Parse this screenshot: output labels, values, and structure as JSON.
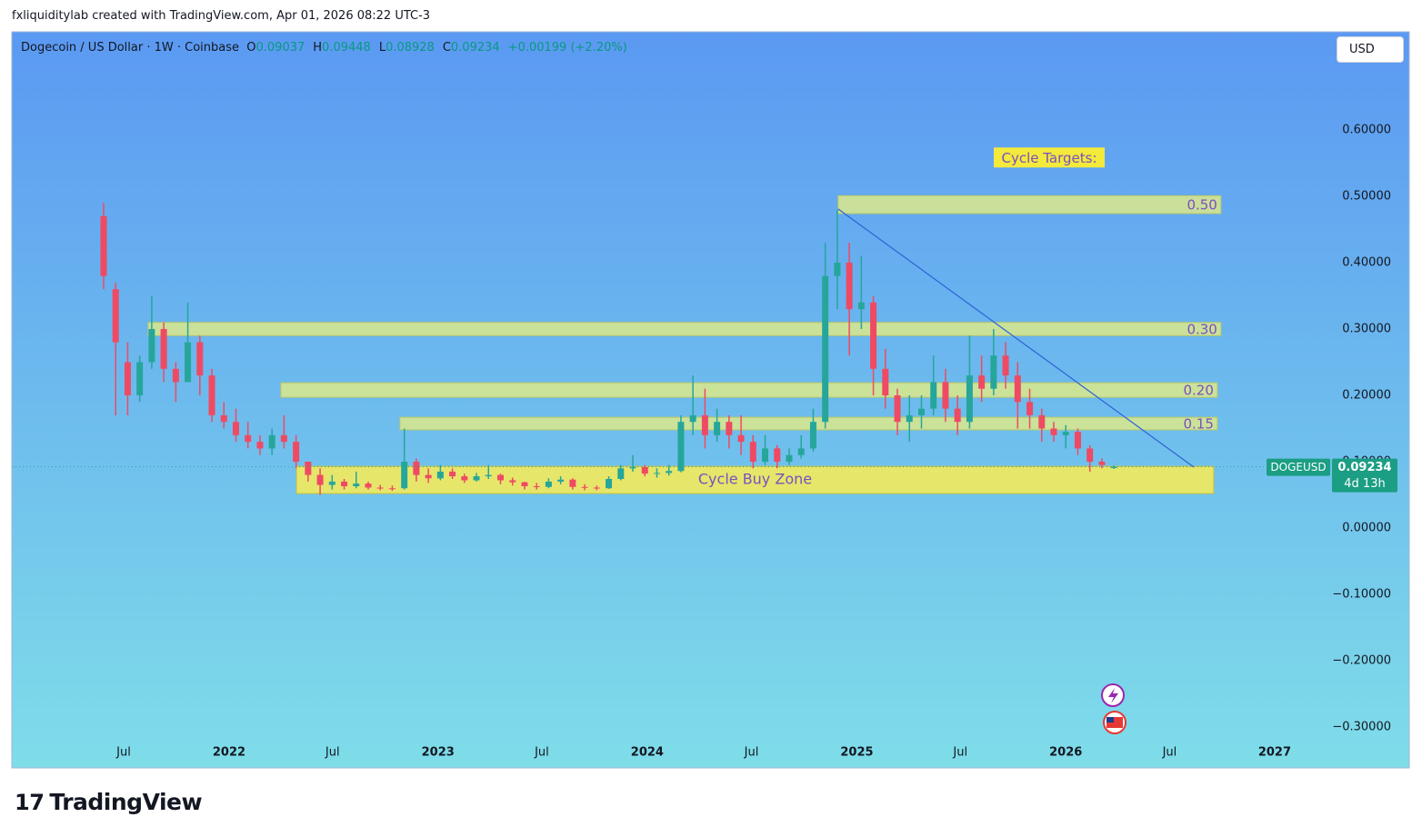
{
  "header": {
    "attribution": "fxliquiditylab created with TradingView.com, Apr 01, 2026 08:22 UTC-3",
    "logo": "TradingView"
  },
  "chart_data": {
    "type": "candlestick",
    "title": "Dogecoin / US Dollar · 1W · Coinbase",
    "ohlc_letters": [
      "O",
      "H",
      "L",
      "C"
    ],
    "change_label": "+0.00199 (+2.20%)",
    "currency": "USD",
    "symbol": "DOGEUSD",
    "countdown": "4d 13h",
    "up_color": "#26a69a",
    "down_color": "#ef4a63",
    "x": [
      -5,
      -2,
      1,
      4,
      7,
      10,
      13,
      16,
      19,
      22,
      25,
      28,
      31,
      34,
      37,
      40,
      43,
      46,
      49,
      52,
      55,
      58,
      61,
      64,
      67,
      70,
      73,
      76,
      79,
      82,
      85,
      88,
      91,
      94,
      97,
      100,
      103,
      106,
      109,
      112,
      115,
      118,
      121,
      124,
      127,
      130,
      133,
      136,
      139,
      142,
      145,
      148,
      151,
      154,
      157,
      160,
      163,
      166,
      169,
      172,
      175,
      178,
      181,
      184,
      187,
      190,
      193,
      196,
      199,
      202,
      205,
      208,
      211,
      214,
      217,
      220,
      223,
      226,
      229,
      232,
      235,
      238,
      241,
      244,
      247
    ],
    "open": [
      0.47,
      0.36,
      0.25,
      0.2,
      0.25,
      0.3,
      0.24,
      0.22,
      0.28,
      0.23,
      0.17,
      0.16,
      0.14,
      0.13,
      0.12,
      0.14,
      0.13,
      0.1,
      0.08,
      0.065,
      0.07,
      0.063,
      0.067,
      0.061,
      0.06,
      0.06,
      0.1,
      0.08,
      0.075,
      0.085,
      0.078,
      0.072,
      0.078,
      0.08,
      0.072,
      0.069,
      0.063,
      0.062,
      0.07,
      0.073,
      0.062,
      0.061,
      0.06,
      0.074,
      0.09,
      0.092,
      0.082,
      0.083,
      0.086,
      0.16,
      0.17,
      0.14,
      0.16,
      0.14,
      0.13,
      0.1,
      0.12,
      0.1,
      0.11,
      0.12,
      0.16,
      0.38,
      0.4,
      0.33,
      0.34,
      0.24,
      0.2,
      0.16,
      0.17,
      0.18,
      0.22,
      0.18,
      0.16,
      0.23,
      0.21,
      0.26,
      0.23,
      0.19,
      0.17,
      0.15,
      0.14,
      0.145,
      0.12,
      0.1,
      0.09037
    ],
    "high": [
      0.49,
      0.37,
      0.28,
      0.26,
      0.35,
      0.31,
      0.25,
      0.34,
      0.29,
      0.24,
      0.19,
      0.18,
      0.16,
      0.14,
      0.15,
      0.17,
      0.14,
      0.1,
      0.09,
      0.08,
      0.074,
      0.085,
      0.07,
      0.065,
      0.064,
      0.15,
      0.105,
      0.09,
      0.095,
      0.09,
      0.082,
      0.083,
      0.095,
      0.082,
      0.076,
      0.07,
      0.068,
      0.075,
      0.078,
      0.075,
      0.066,
      0.064,
      0.078,
      0.095,
      0.11,
      0.095,
      0.09,
      0.095,
      0.17,
      0.23,
      0.21,
      0.18,
      0.17,
      0.17,
      0.14,
      0.14,
      0.125,
      0.12,
      0.14,
      0.18,
      0.43,
      0.48,
      0.43,
      0.41,
      0.35,
      0.27,
      0.21,
      0.2,
      0.2,
      0.26,
      0.24,
      0.2,
      0.29,
      0.26,
      0.3,
      0.28,
      0.25,
      0.21,
      0.18,
      0.16,
      0.155,
      0.15,
      0.125,
      0.105,
      0.09448
    ],
    "low": [
      0.36,
      0.17,
      0.17,
      0.19,
      0.24,
      0.22,
      0.19,
      0.22,
      0.2,
      0.16,
      0.15,
      0.13,
      0.12,
      0.11,
      0.11,
      0.12,
      0.09,
      0.07,
      0.05,
      0.058,
      0.058,
      0.06,
      0.058,
      0.057,
      0.056,
      0.058,
      0.07,
      0.068,
      0.072,
      0.074,
      0.068,
      0.07,
      0.074,
      0.066,
      0.064,
      0.058,
      0.058,
      0.06,
      0.066,
      0.058,
      0.057,
      0.057,
      0.059,
      0.072,
      0.085,
      0.078,
      0.076,
      0.079,
      0.084,
      0.14,
      0.12,
      0.13,
      0.12,
      0.11,
      0.09,
      0.095,
      0.09,
      0.095,
      0.105,
      0.115,
      0.15,
      0.33,
      0.26,
      0.3,
      0.2,
      0.18,
      0.14,
      0.13,
      0.15,
      0.17,
      0.16,
      0.14,
      0.15,
      0.19,
      0.2,
      0.21,
      0.15,
      0.15,
      0.13,
      0.13,
      0.12,
      0.11,
      0.085,
      0.09,
      0.08928
    ],
    "close": [
      0.38,
      0.28,
      0.2,
      0.25,
      0.3,
      0.24,
      0.22,
      0.28,
      0.23,
      0.17,
      0.16,
      0.14,
      0.13,
      0.12,
      0.14,
      0.13,
      0.1,
      0.08,
      0.065,
      0.07,
      0.063,
      0.067,
      0.061,
      0.06,
      0.059,
      0.1,
      0.08,
      0.075,
      0.085,
      0.078,
      0.072,
      0.078,
      0.08,
      0.072,
      0.069,
      0.063,
      0.062,
      0.07,
      0.073,
      0.062,
      0.061,
      0.06,
      0.074,
      0.09,
      0.092,
      0.082,
      0.083,
      0.086,
      0.16,
      0.17,
      0.14,
      0.16,
      0.14,
      0.13,
      0.1,
      0.12,
      0.1,
      0.11,
      0.12,
      0.16,
      0.38,
      0.4,
      0.33,
      0.34,
      0.24,
      0.2,
      0.16,
      0.17,
      0.18,
      0.22,
      0.18,
      0.16,
      0.23,
      0.21,
      0.26,
      0.23,
      0.19,
      0.17,
      0.15,
      0.14,
      0.145,
      0.12,
      0.1,
      0.095,
      0.09234
    ],
    "xlim": [
      -27.9,
      301.4
    ],
    "xticks": [
      {
        "value": 0,
        "label": "Jul"
      },
      {
        "value": 26.3,
        "label": "2022"
      },
      {
        "value": 52.1,
        "label": "Jul"
      },
      {
        "value": 78.4,
        "label": "2023"
      },
      {
        "value": 104.3,
        "label": "Jul"
      },
      {
        "value": 130.6,
        "label": "2024"
      },
      {
        "value": 156.6,
        "label": "Jul"
      },
      {
        "value": 182.9,
        "label": "2025"
      },
      {
        "value": 208.7,
        "label": "Jul"
      },
      {
        "value": 235,
        "label": "2026"
      },
      {
        "value": 260.9,
        "label": "Jul"
      },
      {
        "value": 287.1,
        "label": "2027"
      }
    ],
    "ylim": [
      -0.3616,
      0.748
    ],
    "yticks": [
      {
        "value": 0.6,
        "label": "0.60000"
      },
      {
        "value": 0.5,
        "label": "0.50000"
      },
      {
        "value": 0.4,
        "label": "0.40000"
      },
      {
        "value": 0.3,
        "label": "0.30000"
      },
      {
        "value": 0.2,
        "label": "0.20000"
      },
      {
        "value": 0.1,
        "label": "0.10000"
      },
      {
        "value": 0,
        "label": "0.00000"
      },
      {
        "value": -0.1,
        "label": "−0.10000"
      },
      {
        "value": -0.2,
        "label": "−0.20000"
      },
      {
        "value": -0.3,
        "label": "−0.30000"
      }
    ],
    "targets_label": "Cycle Targets:",
    "zones": [
      {
        "label": "0.50",
        "x": [
          178.2,
          273.7
        ],
        "y": [
          0.474,
          0.501
        ]
      },
      {
        "label": "0.30",
        "x": [
          6.1,
          273.7
        ],
        "y": [
          0.29,
          0.31
        ]
      },
      {
        "label": "0.20",
        "x": [
          39.2,
          272.8
        ],
        "y": [
          0.197,
          0.219
        ]
      },
      {
        "label": "0.15",
        "x": [
          68.9,
          272.8
        ],
        "y": [
          0.148,
          0.167
        ]
      }
    ],
    "buy_zone": {
      "label": "Cycle Buy Zone",
      "x": [
        43.1,
        271.9
      ],
      "y": [
        0.052,
        0.093
      ]
    },
    "trend_line": {
      "x": [
        178.2,
        266.9
      ],
      "y": [
        0.481,
        0.092
      ]
    }
  }
}
